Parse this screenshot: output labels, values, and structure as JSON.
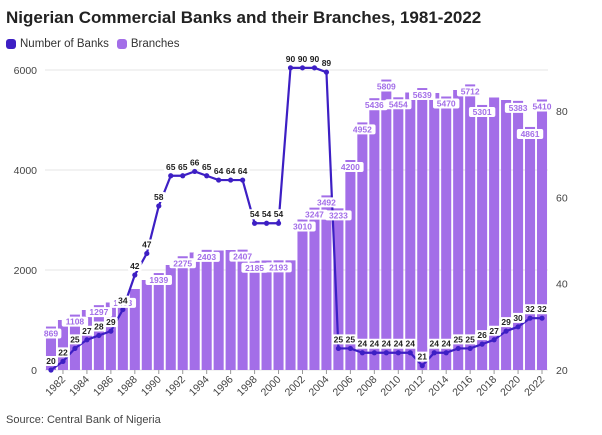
{
  "chart_data": {
    "type": "bar",
    "title": "Nigerian Commercial Banks and their Branches, 1981-2022",
    "source": "Source: Central Bank of Nigeria",
    "legend": [
      "Number of Banks",
      "Branches"
    ],
    "colors": {
      "banks": "#3d1fc4",
      "branches": "#a36ee8",
      "grid": "#e6e6e6",
      "label_bg": "#ffffff"
    },
    "x": [
      1981,
      1982,
      1983,
      1984,
      1985,
      1986,
      1987,
      1988,
      1989,
      1990,
      1991,
      1992,
      1993,
      1994,
      1995,
      1996,
      1997,
      1998,
      1999,
      2000,
      2001,
      2002,
      2003,
      2004,
      2005,
      2006,
      2007,
      2008,
      2009,
      2010,
      2011,
      2012,
      2013,
      2014,
      2015,
      2016,
      2017,
      2018,
      2019,
      2020,
      2021,
      2022
    ],
    "x_tick_labels": [
      "1982",
      "1984",
      "1986",
      "1988",
      "1990",
      "1992",
      "1994",
      "1996",
      "1998",
      "2000",
      "2002",
      "2004",
      "2006",
      "2008",
      "2010",
      "2012",
      "2014",
      "2016",
      "2018",
      "2020",
      "2022"
    ],
    "series": [
      {
        "name": "Branches",
        "type": "bar",
        "axis": "left",
        "values": [
          869,
          1000,
          1108,
          1200,
          1297,
          1350,
          1483,
          1620,
          1800,
          1939,
          2100,
          2275,
          2350,
          2403,
          2390,
          2400,
          2407,
          2185,
          2190,
          2193,
          2193,
          3010,
          3247,
          3492,
          3233,
          4200,
          4952,
          5436,
          5809,
          5454,
          5550,
          5639,
          5540,
          5470,
          5600,
          5712,
          5301,
          5450,
          5400,
          5383,
          4861,
          5410
        ],
        "labels": [
          "869",
          "",
          "1108",
          "",
          "1297",
          "",
          "1483",
          "",
          "",
          "1939",
          "",
          "2275",
          "",
          "2403",
          "",
          "",
          "2407",
          "2185",
          "",
          "2193",
          "",
          "3010",
          "3247",
          "3492",
          "3233",
          "4200",
          "4952",
          "5436",
          "5809",
          "5454",
          "",
          "5639",
          "",
          "5470",
          "",
          "5712",
          "5301",
          "",
          "",
          "5383",
          "4861",
          "5410"
        ]
      },
      {
        "name": "Number of Banks",
        "type": "line",
        "axis": "right",
        "values": [
          20,
          22,
          25,
          27,
          28,
          29,
          34,
          42,
          47,
          58,
          65,
          65,
          66,
          65,
          64,
          64,
          64,
          54,
          54,
          54,
          90,
          90,
          90,
          89,
          25,
          25,
          24,
          24,
          24,
          24,
          24,
          21,
          24,
          24,
          25,
          25,
          26,
          27,
          29,
          30,
          32,
          32
        ],
        "labels": [
          "20",
          "22",
          "25",
          "27",
          "28",
          "29",
          "34",
          "42",
          "47",
          "58",
          "65",
          "65",
          "66",
          "65",
          "64",
          "64",
          "64",
          "54",
          "54",
          "54",
          "90",
          "90",
          "90",
          "89",
          "25",
          "25",
          "24",
          "24",
          "24",
          "24",
          "24",
          "21",
          "24",
          "24",
          "25",
          "25",
          "26",
          "27",
          "29",
          "30",
          "32",
          "32"
        ]
      }
    ],
    "left_axis": {
      "ticks": [
        "0",
        "2000",
        "4000",
        "6000"
      ],
      "ylim": [
        0,
        6000
      ]
    },
    "right_axis": {
      "ticks": [
        "20",
        "40",
        "60",
        "80"
      ],
      "ylim": [
        20,
        89.5
      ]
    }
  }
}
